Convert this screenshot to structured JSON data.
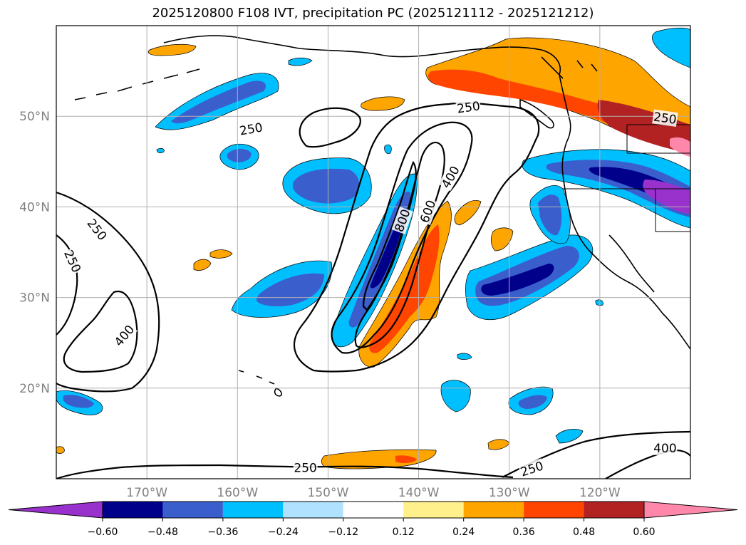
{
  "chart_data": {
    "type": "map",
    "title": "2025120800 F108 IVT, precipitation PC (2025121112 - 2025121212)",
    "lon_range": [
      -180,
      -110
    ],
    "lat_range": [
      10,
      60
    ],
    "lon_ticks": [
      {
        "value": -170,
        "label": "170°W"
      },
      {
        "value": -160,
        "label": "160°W"
      },
      {
        "value": -150,
        "label": "150°W"
      },
      {
        "value": -140,
        "label": "140°W"
      },
      {
        "value": -130,
        "label": "130°W"
      },
      {
        "value": -120,
        "label": "120°W"
      }
    ],
    "lat_ticks": [
      {
        "value": 50,
        "label": "50°N"
      },
      {
        "value": 40,
        "label": "40°N"
      },
      {
        "value": 30,
        "label": "30°N"
      },
      {
        "value": 20,
        "label": "20°N"
      }
    ],
    "grid": true,
    "colorbar": {
      "orientation": "horizontal",
      "levels": [
        -0.6,
        -0.48,
        -0.36,
        -0.24,
        -0.12,
        0.12,
        0.24,
        0.36,
        0.48,
        0.6
      ],
      "tick_labels": [
        "−0.60",
        "−0.48",
        "−0.36",
        "−0.24",
        "−0.12",
        "0.12",
        "0.24",
        "0.36",
        "0.48",
        "0.60"
      ],
      "colors": [
        "#9932cc",
        "#00008b",
        "#3a5fcd",
        "#00bfff",
        "#b0e2ff",
        "#ffffff",
        "#fff08c",
        "#ffa500",
        "#ff4500",
        "#b22222",
        "#ff88aa"
      ],
      "extend": "both"
    },
    "ivt_contour_levels": [
      250,
      400,
      600,
      800
    ],
    "contour_labels": [
      {
        "text": "250",
        "lon": -158.5,
        "lat": 48.6,
        "rot": -10
      },
      {
        "text": "250",
        "lon": -134.5,
        "lat": 51.0,
        "rot": -8
      },
      {
        "text": "250",
        "lon": -112.8,
        "lat": 49.8,
        "rot": 8
      },
      {
        "text": "400",
        "lon": -136.5,
        "lat": 43.3,
        "rot": -60
      },
      {
        "text": "600",
        "lon": -139.0,
        "lat": 39.5,
        "rot": -70
      },
      {
        "text": "800",
        "lon": -141.8,
        "lat": 38.5,
        "rot": -70
      },
      {
        "text": "250",
        "lon": -175.5,
        "lat": 37.5,
        "rot": 52
      },
      {
        "text": "250",
        "lon": -178.2,
        "lat": 34.0,
        "rot": 65
      },
      {
        "text": "400",
        "lon": -172.5,
        "lat": 25.8,
        "rot": -50
      },
      {
        "text": "250",
        "lon": -152.5,
        "lat": 11.2,
        "rot": 0
      },
      {
        "text": "250",
        "lon": -127.5,
        "lat": 11.1,
        "rot": -18
      },
      {
        "text": "400",
        "lon": -112.8,
        "lat": 13.4,
        "rot": 0
      }
    ],
    "precip_pc_regions": [
      {
        "name": "north-pacific-blue-band",
        "value": -0.36
      },
      {
        "name": "subtropical-negative-band",
        "value": -0.48
      },
      {
        "name": "offshore-ar-negative",
        "value": -0.36
      },
      {
        "name": "ar-core-positive",
        "value": 0.36
      },
      {
        "name": "pacific-northwest-positive",
        "value": 0.48
      },
      {
        "name": "california-negative",
        "value": -0.6
      },
      {
        "name": "southern-positive-streak",
        "value": 0.24
      }
    ]
  }
}
